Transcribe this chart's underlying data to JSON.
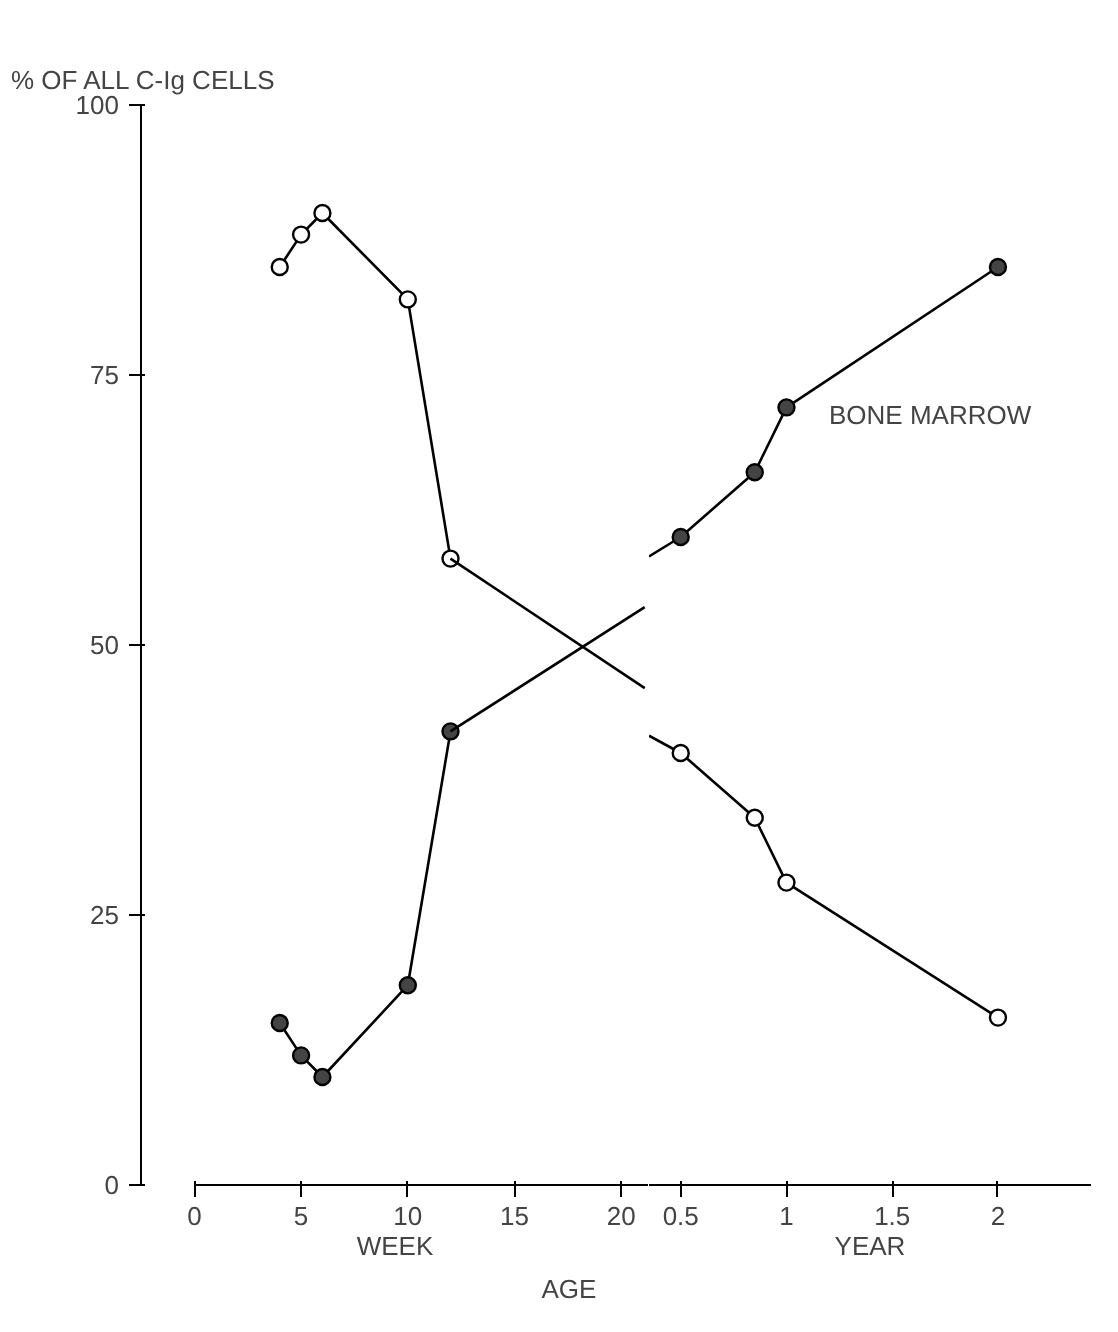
{
  "chart_data": [
    {
      "type": "line",
      "ylabel": "% OF ALL C-Ig CELLS",
      "xlabel": "WEEK",
      "xlim": [
        -2.5,
        21.3
      ],
      "ylim": [
        0,
        100
      ],
      "xticks": [
        0,
        5,
        10,
        15,
        20
      ],
      "yticks": [
        0,
        25,
        50,
        75,
        100
      ],
      "grid": false,
      "annotations": [
        "AGE"
      ],
      "series": [
        {
          "color": "#ffffff",
          "marker": "circle",
          "x": [
            4,
            5,
            6,
            10,
            12
          ],
          "values": [
            85,
            88,
            90,
            82,
            58
          ]
        },
        {
          "color": "#000000",
          "x": [
            12,
            21.1
          ],
          "values": [
            58,
            46
          ]
        },
        {
          "color": "#444444",
          "marker": "circle",
          "x": [
            4,
            5,
            6,
            10,
            12
          ],
          "values": [
            15,
            12,
            10,
            18.5,
            42
          ]
        },
        {
          "color": "#000000",
          "x": [
            12,
            21.1
          ],
          "values": [
            42,
            53.5
          ]
        }
      ]
    },
    {
      "type": "line",
      "xlabel": "YEAR",
      "xlim": [
        0.35,
        2.44
      ],
      "ylim": [
        0,
        100
      ],
      "xticks": [
        0.5,
        1,
        1.5,
        2
      ],
      "tick_labels": "x",
      "grid": false,
      "annotations": [
        "BONE MARROW"
      ],
      "series": [
        {
          "color": "#000000",
          "x": [
            0.35,
            0.5
          ],
          "values": [
            41.6,
            40
          ]
        },
        {
          "color": "#ffffff",
          "marker": "circle",
          "x": [
            0.5,
            0.85,
            1,
            2
          ],
          "values": [
            40,
            34,
            28,
            15.5
          ]
        },
        {
          "color": "#000000",
          "x": [
            0.35,
            0.5
          ],
          "values": [
            58.2,
            60
          ]
        },
        {
          "color": "#444444",
          "marker": "circle",
          "x": [
            0.5,
            0.85,
            1,
            2
          ],
          "values": [
            60,
            66,
            72,
            85
          ]
        }
      ]
    }
  ]
}
